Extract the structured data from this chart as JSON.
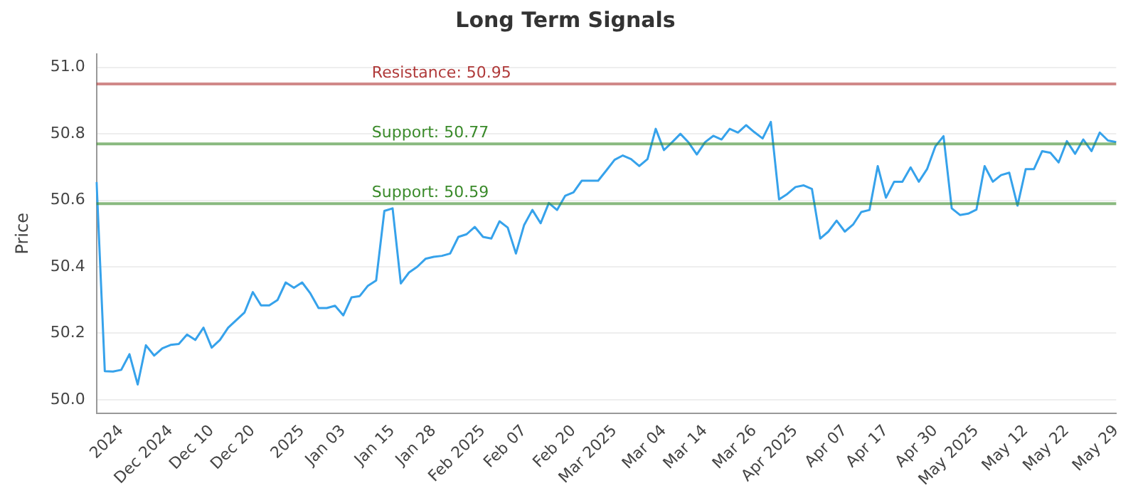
{
  "chart_data": {
    "type": "line",
    "title": "Long Term Signals",
    "ylabel": "Price",
    "categories": [
      null,
      null,
      null,
      "2024",
      null,
      null,
      null,
      null,
      null,
      "Dec 2024",
      null,
      null,
      null,
      null,
      "Dec 10",
      null,
      null,
      null,
      null,
      "Dec 20",
      null,
      null,
      null,
      null,
      null,
      "2025",
      null,
      null,
      null,
      null,
      "Jan 03",
      null,
      null,
      null,
      null,
      null,
      "Jan 15",
      null,
      null,
      null,
      null,
      "Jan 28",
      null,
      null,
      null,
      null,
      null,
      "Feb 2025",
      null,
      null,
      null,
      null,
      "Feb 07",
      null,
      null,
      null,
      null,
      null,
      "Feb 20",
      null,
      null,
      null,
      null,
      "Mar 2025",
      null,
      null,
      null,
      null,
      null,
      "Mar 04",
      null,
      null,
      null,
      null,
      "Mar 14",
      null,
      null,
      null,
      null,
      null,
      "Mar 26",
      null,
      null,
      null,
      null,
      "Apr 2025",
      null,
      null,
      null,
      null,
      null,
      "Apr 07",
      null,
      null,
      null,
      null,
      "Apr 17",
      null,
      null,
      null,
      null,
      null,
      "Apr 30",
      null,
      null,
      null,
      null,
      "May 2025",
      null,
      null,
      null,
      null,
      null,
      "May 12",
      null,
      null,
      null,
      null,
      "May 22",
      null,
      null,
      null,
      null,
      null,
      "May 29"
    ],
    "series": [
      {
        "color": "#36a2eb",
        "values": [
          50.655,
          50.086,
          50.085,
          50.09,
          50.137,
          50.046,
          50.164,
          50.133,
          50.155,
          50.165,
          50.168,
          50.196,
          50.18,
          50.217,
          50.157,
          50.18,
          50.217,
          50.24,
          50.263,
          50.324,
          50.284,
          50.284,
          50.3,
          50.353,
          50.337,
          50.353,
          50.32,
          50.276,
          50.276,
          50.283,
          50.254,
          50.308,
          50.312,
          50.343,
          50.359,
          50.568,
          50.576,
          50.35,
          50.383,
          50.4,
          50.424,
          50.43,
          50.433,
          50.44,
          50.49,
          50.498,
          50.52,
          50.49,
          50.485,
          50.537,
          50.518,
          50.44,
          50.526,
          50.571,
          50.531,
          50.592,
          50.571,
          50.614,
          50.624,
          50.659,
          50.659,
          50.659,
          50.69,
          50.722,
          50.735,
          50.724,
          50.703,
          50.724,
          50.815,
          50.751,
          50.775,
          50.8,
          50.774,
          50.738,
          50.775,
          50.794,
          50.783,
          50.815,
          50.804,
          50.826,
          50.805,
          50.786,
          50.836,
          50.603,
          50.619,
          50.64,
          50.645,
          50.634,
          50.485,
          50.506,
          50.539,
          50.506,
          50.527,
          50.565,
          50.571,
          50.703,
          50.608,
          50.656,
          50.656,
          50.699,
          50.656,
          50.694,
          50.762,
          50.793,
          50.576,
          50.556,
          50.56,
          50.572,
          50.703,
          50.656,
          50.676,
          50.683,
          50.584,
          50.694,
          50.694,
          50.748,
          50.743,
          50.714,
          50.778,
          50.74,
          50.783,
          50.748,
          50.804,
          50.78,
          50.775
        ]
      }
    ],
    "ylim": [
      49.96,
      51.04
    ],
    "yticks": [
      {
        "value": 50,
        "label": "50.0"
      },
      50.2,
      50.4,
      50.6,
      50.8,
      {
        "value": 51,
        "label": "51.0"
      }
    ],
    "ref_lines": [
      {
        "axis": "y",
        "value": 50.95,
        "label": "Resistance: 50.95",
        "color": "#b03a3a"
      },
      {
        "axis": "y",
        "value": 50.77,
        "label": "Support: 50.77",
        "color": "#3a8a2a"
      },
      {
        "axis": "y",
        "value": 50.59,
        "label": "Support: 50.59",
        "color": "#3a8a2a"
      }
    ],
    "grid": "y",
    "legend": false,
    "marker": "none",
    "line_style": "solid"
  }
}
